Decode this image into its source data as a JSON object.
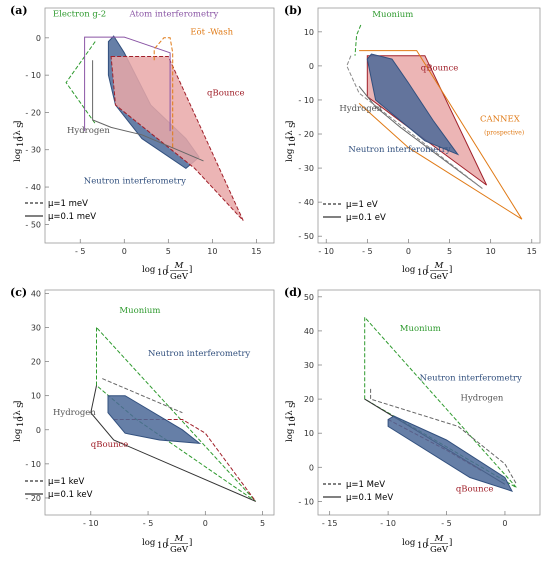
{
  "chart_data": [
    {
      "id": "a",
      "type": "area",
      "panel_label": "(a)",
      "xlabel_main": "log",
      "xlabel_sub": "10",
      "xlabel_frac_num": "M",
      "xlabel_frac_den": "GeV",
      "ylabel_main": "log",
      "ylabel_sub": "10",
      "ylabel_sym": "[λ",
      "ylabel_symsub": "S",
      "ylabel_end": "]",
      "xlim": [
        -9,
        17
      ],
      "ylim": [
        -55,
        8
      ],
      "xticks": [
        -5,
        0,
        5,
        10,
        15
      ],
      "xtick_labels": [
        "- 5",
        "0",
        "5",
        "10",
        "15"
      ],
      "yticks": [
        0,
        -10,
        -20,
        -30,
        -40,
        -50
      ],
      "ytick_labels": [
        "0",
        "- 10",
        "- 20",
        "- 30",
        "- 40",
        "- 50"
      ],
      "legend": {
        "placement": "bottom-left",
        "items": [
          {
            "label": "μ=1 meV",
            "style": "dashed"
          },
          {
            "label": "μ=0.1 meV",
            "style": "solid"
          }
        ]
      },
      "regions": [
        {
          "name": "Neutron interferometry",
          "fill": "#4b6898",
          "stroke": "#32507e",
          "polygon": [
            [
              -1.8,
              -1
            ],
            [
              -1.2,
              0.5
            ],
            [
              0,
              -4
            ],
            [
              3,
              -18
            ],
            [
              7,
              -27
            ],
            [
              8.5,
              -32
            ],
            [
              7,
              -35
            ],
            [
              2,
              -27
            ],
            [
              -1,
              -18
            ],
            [
              -1.8,
              -10
            ]
          ]
        },
        {
          "name": "qBounce",
          "fill": "#e9a8a8",
          "stroke": "#a0202a",
          "dashed": true,
          "polygon": [
            [
              -1.5,
              -5
            ],
            [
              5,
              -5
            ],
            [
              13.5,
              -49
            ],
            [
              8,
              -35
            ],
            [
              -1,
              -18
            ]
          ]
        },
        {
          "name": "Electron g-2",
          "stroke": "#2e9a2e",
          "dashed": true,
          "open": true,
          "polyline": [
            [
              -3.3,
              -1
            ],
            [
              -6.6,
              -12
            ],
            [
              -3.3,
              -23
            ]
          ]
        },
        {
          "name": "Atom interferometry",
          "stroke": "#8a55a5",
          "open": true,
          "polyline": [
            [
              -4.5,
              -25
            ],
            [
              -4.5,
              0.2
            ],
            [
              0,
              0.2
            ],
            [
              5.2,
              -4
            ],
            [
              5.2,
              -25
            ]
          ]
        },
        {
          "name": "Eöt -Wash",
          "stroke": "#e07a16",
          "dashed": true,
          "open": true,
          "polyline": [
            [
              3.4,
              -6
            ],
            [
              3.4,
              -3
            ],
            [
              4.5,
              0
            ],
            [
              5.2,
              0
            ],
            [
              5.5,
              -4
            ],
            [
              5.5,
              -30
            ]
          ]
        },
        {
          "name": "Hydrogen",
          "stroke": "#666666",
          "open": true,
          "polyline": [
            [
              -3.6,
              -6
            ],
            [
              -3.6,
              -22
            ],
            [
              -1.5,
              -24
            ],
            [
              2,
              -26
            ],
            [
              6,
              -30
            ],
            [
              9,
              -33
            ]
          ]
        }
      ],
      "annotations": [
        {
          "text": "Electron g-2",
          "color": "#2e9a2e",
          "x": -8.1,
          "y": 5.7
        },
        {
          "text": "Atom interferometry",
          "color": "#8a55a5",
          "x": 0.6,
          "y": 5.7
        },
        {
          "text": "Eöt -Wash",
          "color": "#e07a16",
          "x": 7.5,
          "y": 0.9
        },
        {
          "text": "qBounce",
          "color": "#a0202a",
          "x": 9.4,
          "y": -15.5
        },
        {
          "text": "Hydrogen",
          "color": "#555555",
          "x": -6.5,
          "y": -25.5
        },
        {
          "text": "Neutron interferometry",
          "color": "#32507e",
          "x": -4.6,
          "y": -39
        }
      ]
    },
    {
      "id": "b",
      "type": "area",
      "panel_label": "(b)",
      "xlabel_main": "log",
      "xlabel_sub": "10",
      "xlabel_frac_num": "M",
      "xlabel_frac_den": "GeV",
      "ylabel_main": "log",
      "ylabel_sub": "10",
      "ylabel_sym": "[λ",
      "ylabel_symsub": "S",
      "ylabel_end": "]",
      "xlim": [
        -11,
        16
      ],
      "ylim": [
        -52,
        17
      ],
      "xticks": [
        -10,
        -5,
        0,
        5,
        10,
        15
      ],
      "xtick_labels": [
        "- 10",
        "- 5",
        "0",
        "5",
        "10",
        "15"
      ],
      "yticks": [
        10,
        0,
        -10,
        -20,
        -30,
        -40,
        -50
      ],
      "ytick_labels": [
        "10",
        "0",
        "- 10",
        "- 20",
        "- 30",
        "- 40",
        "- 50"
      ],
      "legend": {
        "placement": "bottom-left",
        "items": [
          {
            "label": "μ=1 eV",
            "style": "dashed"
          },
          {
            "label": "μ=0.1 eV",
            "style": "solid"
          }
        ]
      },
      "regions": [
        {
          "name": "qBounce",
          "fill": "#e9a8a8",
          "stroke": "#a0202a",
          "polygon": [
            [
              -5,
              3
            ],
            [
              2,
              3
            ],
            [
              9.5,
              -35
            ],
            [
              5,
              -27
            ],
            [
              -5,
              -9
            ]
          ]
        },
        {
          "name": "Neutron interferometry",
          "fill": "#4b6898",
          "stroke": "#32507e",
          "polygon": [
            [
              -5,
              2
            ],
            [
              -4.5,
              3.5
            ],
            [
              -2,
              2
            ],
            [
              0,
              -5
            ],
            [
              3,
              -16
            ],
            [
              6,
              -26
            ],
            [
              2,
              -22
            ],
            [
              -4,
              -10
            ]
          ]
        },
        {
          "name": "CANNEX (prospective)",
          "stroke": "#e07a16",
          "open": true,
          "polyline": [
            [
              -6,
              4.5
            ],
            [
              1,
              4.5
            ],
            [
              13.8,
              -45
            ],
            [
              0,
              -24
            ],
            [
              -6,
              -11
            ]
          ]
        },
        {
          "name": "Muonium",
          "stroke": "#2e9a2e",
          "dashed": true,
          "open": true,
          "polyline": [
            [
              -5.8,
              12
            ],
            [
              -6.3,
              9
            ],
            [
              -6.5,
              3
            ]
          ]
        },
        {
          "name": "Hydrogen",
          "stroke": "#666666",
          "open": true,
          "polyline": [
            [
              -6,
              -6
            ],
            [
              -4,
              -12
            ],
            [
              -1,
              -18
            ],
            [
              4,
              -27
            ],
            [
              9,
              -36
            ]
          ]
        },
        {
          "name": "outer-dashed",
          "stroke": "#888888",
          "dashed": true,
          "open": true,
          "polyline": [
            [
              -7,
              3
            ],
            [
              -7.5,
              0
            ],
            [
              -6,
              -8
            ],
            [
              9,
              -36
            ]
          ]
        }
      ],
      "annotations": [
        {
          "text": "Muonium",
          "color": "#2e9a2e",
          "x": -4.4,
          "y": 14.3
        },
        {
          "text": "qBounce",
          "color": "#a0202a",
          "x": 1.5,
          "y": -1.3
        },
        {
          "text": "Hydrogen",
          "color": "#555555",
          "x": -8.4,
          "y": -13.3
        },
        {
          "text": "Neutron interferometry",
          "color": "#32507e",
          "x": -7.3,
          "y": -25.3
        },
        {
          "text": "CANNEX",
          "color": "#e07a16",
          "x": 8.7,
          "y": -16.3
        },
        {
          "text": "(prospective)",
          "color": "#e07a16",
          "x": 9.2,
          "y": -20.2,
          "small": true
        }
      ]
    },
    {
      "id": "c",
      "type": "area",
      "panel_label": "(c)",
      "xlabel_main": "log",
      "xlabel_sub": "10",
      "xlabel_frac_num": "M",
      "xlabel_frac_den": "GeV",
      "ylabel_main": "log",
      "ylabel_sub": "10",
      "ylabel_sym": "[λ",
      "ylabel_symsub": "S",
      "ylabel_end": "]",
      "xlim": [
        -14,
        6
      ],
      "ylim": [
        -25,
        41
      ],
      "xticks": [
        -10,
        -5,
        0,
        5
      ],
      "xtick_labels": [
        "- 10",
        "- 5",
        "0",
        "5"
      ],
      "yticks": [
        40,
        30,
        20,
        10,
        0,
        -10,
        -20
      ],
      "ytick_labels": [
        "40",
        "30",
        "20",
        "10",
        "0",
        "- 10",
        "- 20"
      ],
      "legend": {
        "placement": "bottom-left",
        "items": [
          {
            "label": "μ=1 keV",
            "style": "dashed"
          },
          {
            "label": "μ=0.1 keV",
            "style": "solid"
          }
        ]
      },
      "regions": [
        {
          "name": "Muonium",
          "stroke": "#2e9a2e",
          "dashed": true,
          "open": true,
          "polyline": [
            [
              -9.5,
              30
            ],
            [
              -9.5,
              13
            ],
            [
              -6,
              3
            ],
            [
              4.4,
              -21
            ],
            [
              -9.5,
              30
            ]
          ]
        },
        {
          "name": "Hydrogen",
          "stroke": "#666666",
          "dashed": true,
          "open": true,
          "polyline": [
            [
              -9,
              15
            ],
            [
              -2,
              5
            ]
          ]
        },
        {
          "name": "outer-solid",
          "stroke": "#333333",
          "open": true,
          "polyline": [
            [
              -9.5,
              13
            ],
            [
              -10,
              5
            ],
            [
              -8,
              -3
            ],
            [
              4.4,
              -21
            ]
          ]
        },
        {
          "name": "qBounce",
          "stroke": "#a0202a",
          "dashed": true,
          "open": true,
          "polyline": [
            [
              -8,
              3
            ],
            [
              -2,
              3
            ],
            [
              0,
              -1
            ],
            [
              4.4,
              -21
            ]
          ]
        },
        {
          "name": "Neutron interferometry",
          "fill": "#4b6898",
          "stroke": "#32507e",
          "polygon": [
            [
              -8.5,
              10
            ],
            [
              -7,
              10
            ],
            [
              -6,
              8
            ],
            [
              -2,
              0
            ],
            [
              -0.5,
              -4
            ],
            [
              -4,
              -3
            ],
            [
              -7,
              -1
            ],
            [
              -8.5,
              5
            ]
          ]
        }
      ],
      "annotations": [
        {
          "text": "Muonium",
          "color": "#2e9a2e",
          "x": -7.5,
          "y": 34.3
        },
        {
          "text": "Neutron interferometry",
          "color": "#32507e",
          "x": -5,
          "y": 21.6
        },
        {
          "text": "Hydrogen",
          "color": "#555555",
          "x": -13.3,
          "y": 4.3
        },
        {
          "text": "qBounce",
          "color": "#a0202a",
          "x": -10,
          "y": -5
        }
      ]
    },
    {
      "id": "d",
      "type": "area",
      "panel_label": "(d)",
      "xlabel_main": "log",
      "xlabel_sub": "10",
      "xlabel_frac_num": "M",
      "xlabel_frac_den": "GeV",
      "ylabel_main": "log",
      "ylabel_sub": "10",
      "ylabel_sym": "[λ",
      "ylabel_symsub": "S",
      "ylabel_end": "]",
      "xlim": [
        -16,
        3
      ],
      "ylim": [
        -14,
        52
      ],
      "xticks": [
        -15,
        -10,
        -5,
        0
      ],
      "xtick_labels": [
        "- 15",
        "- 10",
        "- 5",
        "0"
      ],
      "yticks": [
        50,
        40,
        30,
        20,
        10,
        0,
        -10
      ],
      "ytick_labels": [
        "50",
        "40",
        "30",
        "20",
        "10",
        "0",
        "- 10"
      ],
      "legend": {
        "placement": "bottom-left",
        "items": [
          {
            "label": "μ=1 MeV",
            "style": "dashed"
          },
          {
            "label": "μ=0.1 MeV",
            "style": "solid"
          }
        ]
      },
      "regions": [
        {
          "name": "Muonium",
          "stroke": "#2e9a2e",
          "dashed": true,
          "open": true,
          "polyline": [
            [
              -12,
              44
            ],
            [
              -12,
              20
            ],
            [
              1,
              -6
            ],
            [
              -12,
              44
            ]
          ]
        },
        {
          "name": "Hydrogen",
          "stroke": "#666666",
          "dashed": true,
          "open": true,
          "polyline": [
            [
              -11.5,
              23
            ],
            [
              -11.5,
              20
            ],
            [
              -4,
              12
            ],
            [
              0,
              1
            ],
            [
              1,
              -5
            ]
          ]
        },
        {
          "name": "outer-solid",
          "stroke": "#333333",
          "open": true,
          "polyline": [
            [
              -12,
              20
            ],
            [
              0,
              -5
            ]
          ]
        },
        {
          "name": "qBounce",
          "stroke": "#a0202a",
          "dashed": true,
          "open": true,
          "polyline": [
            [
              -10,
              14
            ],
            [
              -5,
              5
            ],
            [
              -2,
              -1
            ]
          ]
        },
        {
          "name": "Neutron interferometry",
          "fill": "#4b6898",
          "stroke": "#32507e",
          "polygon": [
            [
              -10,
              14
            ],
            [
              -9.5,
              15
            ],
            [
              -5,
              8
            ],
            [
              0,
              -3
            ],
            [
              0.6,
              -7
            ],
            [
              -3,
              -3
            ],
            [
              -10,
              12
            ]
          ]
        }
      ],
      "annotations": [
        {
          "text": "Muonium",
          "color": "#2e9a2e",
          "x": -9,
          "y": 40
        },
        {
          "text": "Neutron interferometry",
          "color": "#32507e",
          "x": -7.3,
          "y": 25.4
        },
        {
          "text": "Hydrogen",
          "color": "#555555",
          "x": -3.8,
          "y": 19.6
        },
        {
          "text": "qBounce",
          "color": "#a0202a",
          "x": -4.2,
          "y": -7.1
        }
      ]
    }
  ]
}
